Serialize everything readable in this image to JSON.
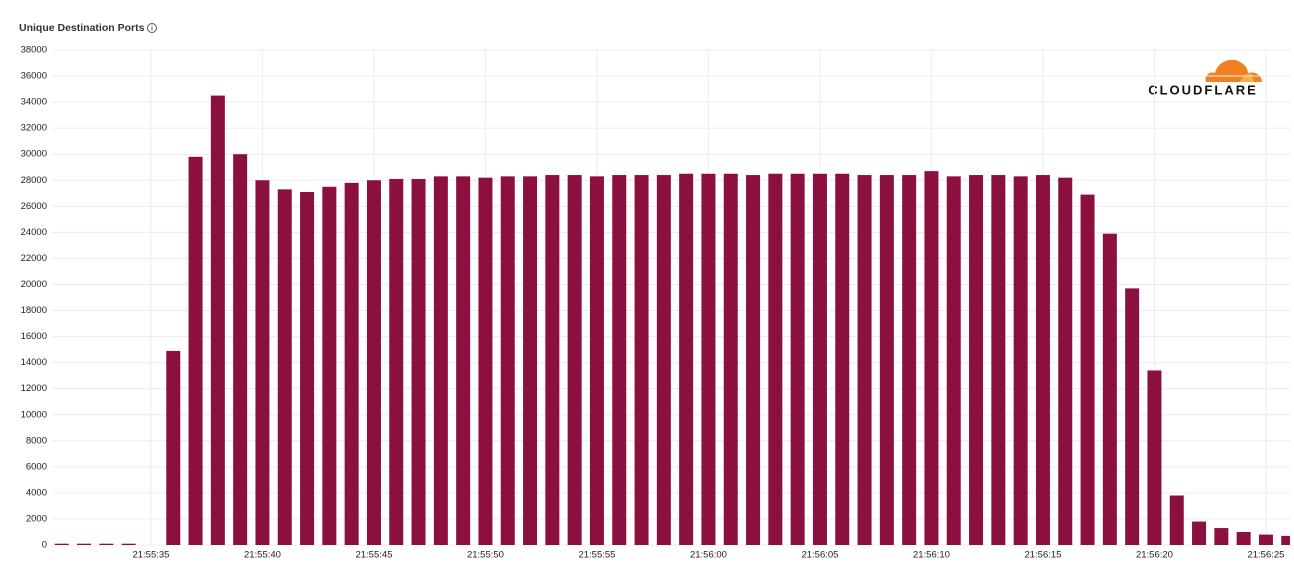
{
  "title": "Unique Destination Ports",
  "logo": "CLOUDFLARE",
  "chart_data": {
    "type": "bar",
    "color": "#8c103f",
    "grid": true,
    "categories": [
      null,
      null,
      null,
      null,
      "21:55:35",
      null,
      null,
      null,
      null,
      "21:55:40",
      null,
      null,
      null,
      null,
      "21:55:45",
      null,
      null,
      null,
      null,
      "21:55:50",
      null,
      null,
      null,
      null,
      "21:55:55",
      null,
      null,
      null,
      null,
      "21:56:00",
      null,
      null,
      null,
      null,
      "21:56:05",
      null,
      null,
      null,
      null,
      "21:56:10",
      null,
      null,
      null,
      null,
      "21:56:15",
      null,
      null,
      null,
      null,
      "21:56:20",
      null,
      null,
      null,
      null,
      "21:56:25",
      null
    ],
    "values": [
      100,
      100,
      100,
      100,
      0,
      14900,
      29800,
      34500,
      30000,
      28000,
      27300,
      27100,
      27500,
      27800,
      28000,
      28100,
      28100,
      28300,
      28300,
      28200,
      28300,
      28300,
      28400,
      28400,
      28300,
      28400,
      28400,
      28400,
      28500,
      28500,
      28500,
      28400,
      28500,
      28500,
      28500,
      28500,
      28400,
      28400,
      28400,
      28700,
      28300,
      28400,
      28400,
      28300,
      28400,
      28200,
      26900,
      23900,
      19700,
      13400,
      3800,
      1800,
      1300,
      1000,
      800,
      700
    ],
    "ylim": [
      0,
      38000
    ],
    "yticks": [
      0,
      2000,
      4000,
      6000,
      8000,
      10000,
      12000,
      14000,
      16000,
      18000,
      20000,
      22000,
      24000,
      26000,
      28000,
      30000,
      32000,
      34000,
      36000,
      38000
    ]
  }
}
